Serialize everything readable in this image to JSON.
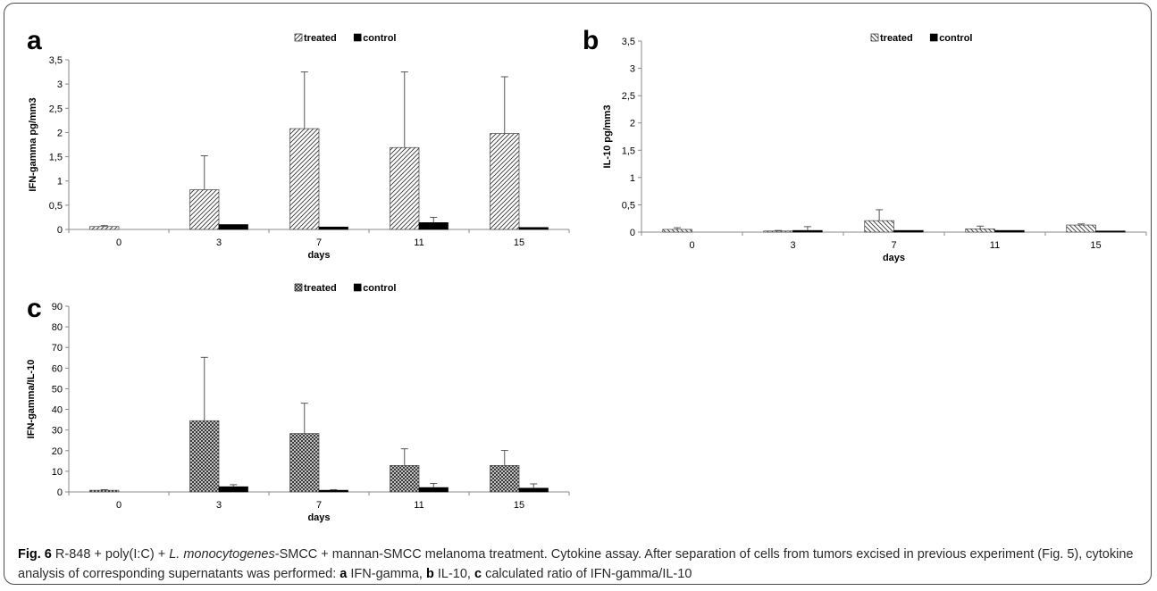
{
  "chart_data": [
    {
      "panel": "a",
      "type": "bar",
      "categories": [
        "0",
        "3",
        "7",
        "11",
        "15"
      ],
      "xlabel": "days",
      "ylabel": "IFN-gamma pg/mm3",
      "ylim": [
        0,
        3.5
      ],
      "yticks": [
        "0",
        "0,5",
        "1",
        "1,5",
        "2",
        "2,5",
        "3",
        "3,5"
      ],
      "grid": false,
      "legend": "top-center",
      "series": [
        {
          "name": "treated",
          "pattern": "diag-fwd",
          "values": [
            0.06,
            0.82,
            2.08,
            1.69,
            1.98
          ],
          "err": [
            0.02,
            0.7,
            1.17,
            1.56,
            1.17
          ]
        },
        {
          "name": "control",
          "pattern": "solid",
          "values": [
            0,
            0.1,
            0.05,
            0.14,
            0.04
          ],
          "err": [
            0,
            0,
            0,
            0.11,
            0
          ]
        }
      ]
    },
    {
      "panel": "b",
      "type": "bar",
      "categories": [
        "0",
        "3",
        "7",
        "11",
        "15"
      ],
      "xlabel": "days",
      "ylabel": "IL-10 pg/mm3",
      "ylim": [
        0,
        3.5
      ],
      "yticks": [
        "0",
        "0,5",
        "1",
        "1,5",
        "2",
        "2,5",
        "3",
        "3,5"
      ],
      "grid": false,
      "legend": "top-center",
      "series": [
        {
          "name": "treated",
          "pattern": "diag-back",
          "values": [
            0.05,
            0.02,
            0.21,
            0.06,
            0.13
          ],
          "err": [
            0.03,
            0.01,
            0.2,
            0.05,
            0.02
          ]
        },
        {
          "name": "control",
          "pattern": "solid",
          "values": [
            0,
            0.03,
            0.03,
            0.03,
            0.02
          ],
          "err": [
            0,
            0.07,
            0,
            0,
            0
          ]
        }
      ]
    },
    {
      "panel": "c",
      "type": "bar",
      "categories": [
        "0",
        "3",
        "7",
        "11",
        "15"
      ],
      "xlabel": "days",
      "ylabel": "IFN-gamma/IL-10",
      "ylim": [
        0,
        90
      ],
      "yticks": [
        "0",
        "10",
        "20",
        "30",
        "40",
        "50",
        "60",
        "70",
        "80",
        "90"
      ],
      "grid": false,
      "legend": "top-center",
      "series": [
        {
          "name": "treated",
          "pattern": "crosshatch",
          "values": [
            0.8,
            34.5,
            28.3,
            12.8,
            12.8
          ],
          "err": [
            0.3,
            30.7,
            14.7,
            8.1,
            7.3
          ]
        },
        {
          "name": "control",
          "pattern": "solid",
          "values": [
            0,
            2.5,
            0.8,
            2.1,
            1.8
          ],
          "err": [
            0,
            1.0,
            0.3,
            2.0,
            2.1
          ]
        }
      ]
    }
  ],
  "caption": {
    "fig": "Fig. 6",
    "line1": " R-848 + poly(I:C) + ",
    "species": "L. monocytogenes",
    "line1b": "-SMCC + mannan-SMCC melanoma treatment. Cytokine assay. After separation of cells from tumors excised in previous experiment (Fig. 5), cytokine analysis of corresponding supernatants was performed: ",
    "a_key": "a",
    "a_text": " IFN-gamma, ",
    "b_key": "b",
    "b_text": " IL-10, ",
    "c_key": "c",
    "c_text": " calculated ratio of IFN-gamma/IL-10"
  }
}
